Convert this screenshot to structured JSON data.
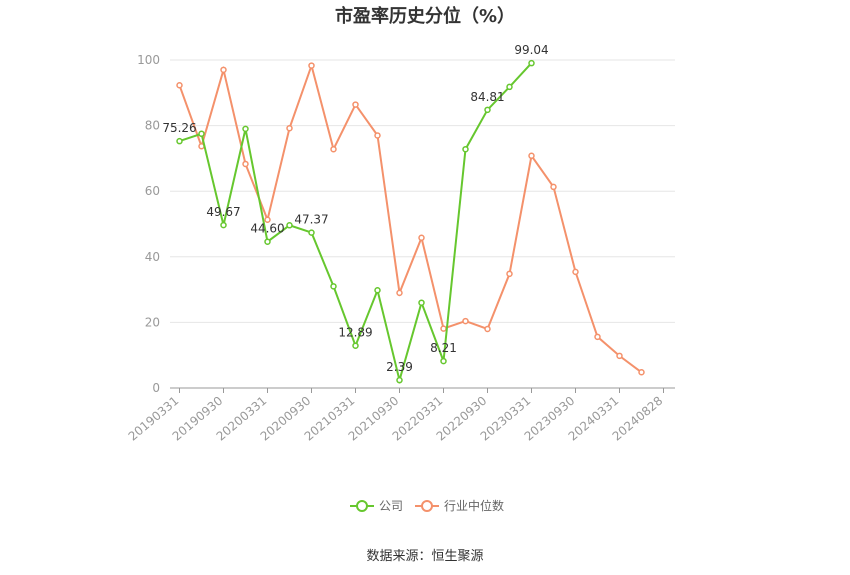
{
  "chart_data": {
    "type": "line",
    "title": "市盈率历史分位（%）",
    "source": "数据来源：恒生聚源",
    "x_tick_labels": [
      "20190331",
      "20190930",
      "20200331",
      "20200930",
      "20210331",
      "20210930",
      "20220331",
      "20220930",
      "20230331",
      "20230930",
      "20240331",
      "20240828"
    ],
    "ylim": [
      0,
      100
    ],
    "y_ticks": [
      0,
      20,
      40,
      60,
      80,
      100
    ],
    "grid": true,
    "legend_position": "bottom",
    "colors": {
      "company": "#66c72e",
      "industry": "#f4916b"
    },
    "series": [
      {
        "name": "公司",
        "values": [
          75.26,
          77.5,
          49.67,
          79.0,
          44.6,
          49.6,
          47.37,
          31.0,
          12.89,
          29.8,
          2.39,
          26.0,
          8.21,
          72.8,
          84.81,
          91.8,
          99.04
        ],
        "labels": {
          "0": "75.26",
          "2": "49.67",
          "4": "44.60",
          "6": "47.37",
          "8": "12.89",
          "10": "2.39",
          "12": "8.21",
          "14": "84.81",
          "16": "99.04"
        }
      },
      {
        "name": "行业中位数",
        "values": [
          92.3,
          73.7,
          97.0,
          68.3,
          51.3,
          79.2,
          98.3,
          72.8,
          86.4,
          77.0,
          29.0,
          45.8,
          18.1,
          20.4,
          18.0,
          34.8,
          70.8,
          61.3,
          35.4,
          15.6,
          9.8,
          4.8
        ]
      }
    ]
  }
}
